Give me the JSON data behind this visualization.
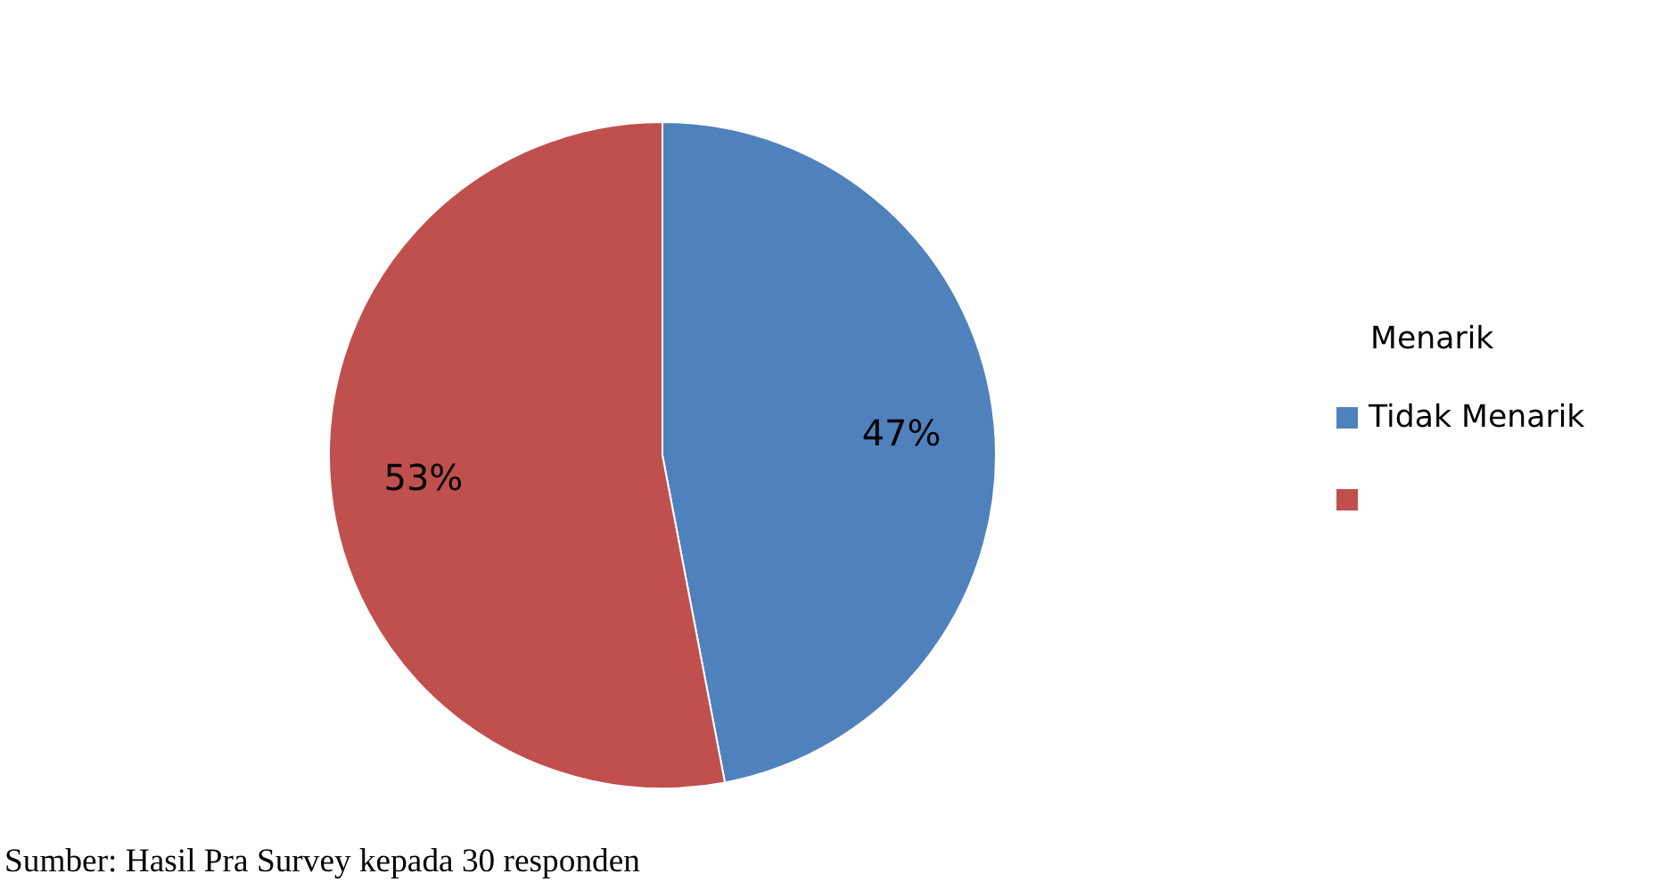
{
  "chart_data": {
    "type": "pie",
    "legend_title": "Menarik",
    "categories": [
      "Tidak Menarik",
      null
    ],
    "values": [
      47,
      53
    ],
    "colors": [
      "#4f81bd",
      "#c0504d"
    ],
    "value_labels": [
      "47%",
      "53%"
    ],
    "legend": "right",
    "annotations": [
      "Sumber: Hasil Pra Survey kepada 30 responden"
    ]
  }
}
